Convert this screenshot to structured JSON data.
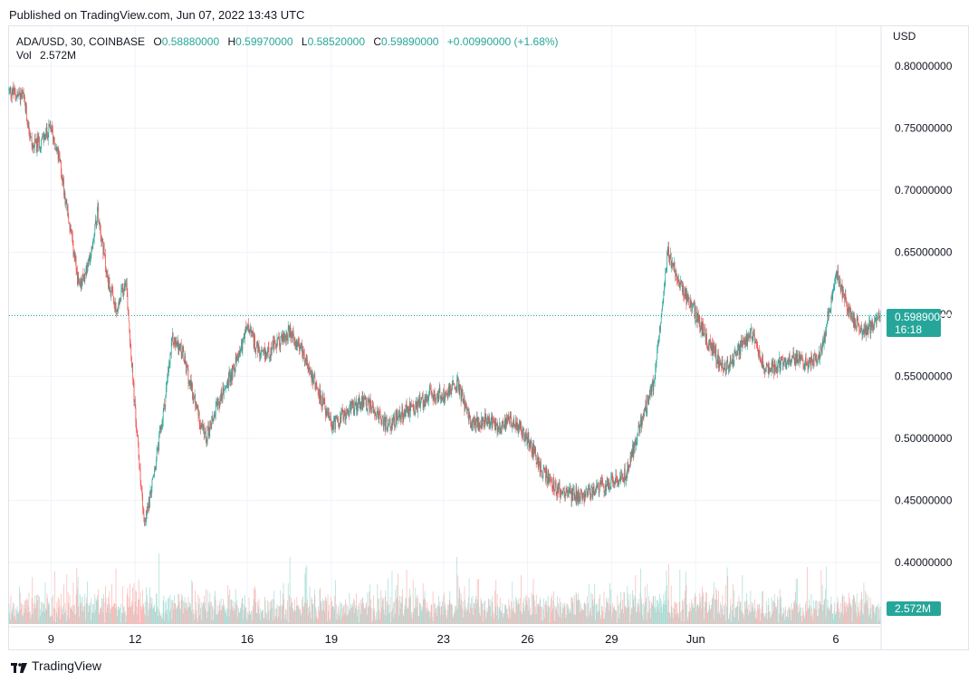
{
  "header": {
    "published": "Published on TradingView.com, Jun 07, 2022 13:43 UTC"
  },
  "legend": {
    "symbol": "ADA/USD, 30, COINBASE",
    "o_label": "O",
    "o_value": "0.58880000",
    "h_label": "H",
    "h_value": "0.59970000",
    "l_label": "L",
    "l_value": "0.58520000",
    "c_label": "C",
    "c_value": "0.59890000",
    "change": "+0.00990000 (+1.68%)",
    "vol_label": "Vol",
    "vol_value": "2.572M"
  },
  "axis": {
    "currency": "USD"
  },
  "price_badge": {
    "price": "0.59890000",
    "countdown": "16:18"
  },
  "volume_badge": {
    "value": "2.572M"
  },
  "footer": {
    "brand": "TradingView"
  },
  "colors": {
    "up": "#26a69a",
    "down": "#ef5350",
    "grid": "#f0f3fa",
    "badge": "#26a69a"
  },
  "chart_data": {
    "type": "candlestick",
    "symbol": "ADA/USD",
    "interval": "30",
    "exchange": "COINBASE",
    "ylim": [
      0.365,
      0.825
    ],
    "y_ticks": [
      0.8,
      0.75,
      0.7,
      0.65,
      0.6,
      0.55,
      0.5,
      0.45,
      0.4
    ],
    "y_tick_labels": [
      "0.80000000",
      "0.75000000",
      "0.70000000",
      "0.65000000",
      "0.60000000",
      "0.55000000",
      "0.50000000",
      "0.45000000",
      "0.40000000"
    ],
    "x_ticks": [
      "9",
      "12",
      "16",
      "19",
      "23",
      "26",
      "29",
      "Jun",
      "6"
    ],
    "x_tick_days": [
      "2022-05-09",
      "2022-05-12",
      "2022-05-16",
      "2022-05-19",
      "2022-05-23",
      "2022-05-26",
      "2022-05-29",
      "2022-06-01",
      "2022-06-06"
    ],
    "x_range": [
      "2022-05-07T12:00",
      "2022-06-07T14:00"
    ],
    "close_path": [
      [
        "2022-05-07T12:00",
        0.78
      ],
      [
        "2022-05-08T00:00",
        0.775
      ],
      [
        "2022-05-08T08:00",
        0.735
      ],
      [
        "2022-05-08T16:00",
        0.74
      ],
      [
        "2022-05-09T00:00",
        0.75
      ],
      [
        "2022-05-09T08:00",
        0.72
      ],
      [
        "2022-05-09T16:00",
        0.67
      ],
      [
        "2022-05-10T00:00",
        0.62
      ],
      [
        "2022-05-10T08:00",
        0.64
      ],
      [
        "2022-05-10T16:00",
        0.685
      ],
      [
        "2022-05-11T00:00",
        0.63
      ],
      [
        "2022-05-11T08:00",
        0.6
      ],
      [
        "2022-05-11T16:00",
        0.63
      ],
      [
        "2022-05-12T00:00",
        0.52
      ],
      [
        "2022-05-12T08:00",
        0.43
      ],
      [
        "2022-05-12T16:00",
        0.47
      ],
      [
        "2022-05-13T00:00",
        0.52
      ],
      [
        "2022-05-13T08:00",
        0.58
      ],
      [
        "2022-05-13T16:00",
        0.57
      ],
      [
        "2022-05-14T00:00",
        0.54
      ],
      [
        "2022-05-14T12:00",
        0.5
      ],
      [
        "2022-05-15T00:00",
        0.53
      ],
      [
        "2022-05-15T12:00",
        0.555
      ],
      [
        "2022-05-16T00:00",
        0.59
      ],
      [
        "2022-05-16T12:00",
        0.565
      ],
      [
        "2022-05-17T00:00",
        0.575
      ],
      [
        "2022-05-17T12:00",
        0.585
      ],
      [
        "2022-05-18T00:00",
        0.57
      ],
      [
        "2022-05-18T12:00",
        0.54
      ],
      [
        "2022-05-19T00:00",
        0.51
      ],
      [
        "2022-05-19T12:00",
        0.52
      ],
      [
        "2022-05-20T00:00",
        0.53
      ],
      [
        "2022-05-20T12:00",
        0.525
      ],
      [
        "2022-05-21T00:00",
        0.51
      ],
      [
        "2022-05-21T12:00",
        0.52
      ],
      [
        "2022-05-22T00:00",
        0.525
      ],
      [
        "2022-05-22T12:00",
        0.535
      ],
      [
        "2022-05-23T00:00",
        0.535
      ],
      [
        "2022-05-23T12:00",
        0.545
      ],
      [
        "2022-05-24T00:00",
        0.51
      ],
      [
        "2022-05-24T12:00",
        0.515
      ],
      [
        "2022-05-25T00:00",
        0.51
      ],
      [
        "2022-05-25T12:00",
        0.515
      ],
      [
        "2022-05-26T00:00",
        0.5
      ],
      [
        "2022-05-26T12:00",
        0.475
      ],
      [
        "2022-05-27T00:00",
        0.46
      ],
      [
        "2022-05-27T12:00",
        0.455
      ],
      [
        "2022-05-28T00:00",
        0.455
      ],
      [
        "2022-05-28T12:00",
        0.46
      ],
      [
        "2022-05-29T00:00",
        0.465
      ],
      [
        "2022-05-29T12:00",
        0.47
      ],
      [
        "2022-05-30T00:00",
        0.51
      ],
      [
        "2022-05-30T12:00",
        0.545
      ],
      [
        "2022-05-31T00:00",
        0.65
      ],
      [
        "2022-05-31T12:00",
        0.62
      ],
      [
        "2022-06-01T00:00",
        0.6
      ],
      [
        "2022-06-01T12:00",
        0.575
      ],
      [
        "2022-06-02T00:00",
        0.555
      ],
      [
        "2022-06-02T12:00",
        0.57
      ],
      [
        "2022-06-03T00:00",
        0.585
      ],
      [
        "2022-06-03T12:00",
        0.555
      ],
      [
        "2022-06-04T00:00",
        0.56
      ],
      [
        "2022-06-04T12:00",
        0.565
      ],
      [
        "2022-06-05T00:00",
        0.56
      ],
      [
        "2022-06-05T12:00",
        0.57
      ],
      [
        "2022-06-06T00:00",
        0.635
      ],
      [
        "2022-06-06T12:00",
        0.6
      ],
      [
        "2022-06-07T00:00",
        0.585
      ],
      [
        "2022-06-07T14:00",
        0.5989
      ]
    ]
  }
}
